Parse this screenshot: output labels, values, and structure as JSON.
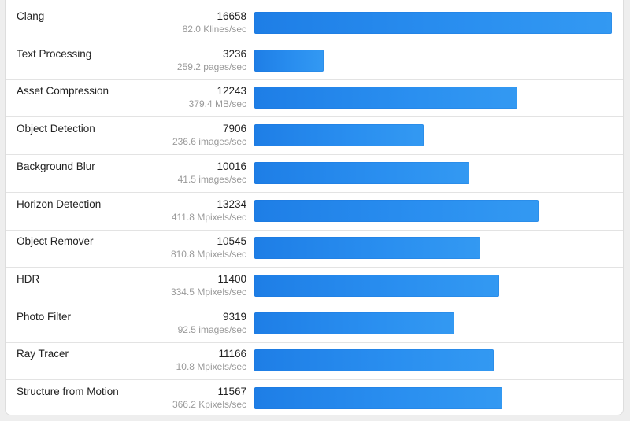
{
  "benchmarks": {
    "max_score": 16658,
    "bar_color": "#2188ec",
    "rows": [
      {
        "name": "Clang",
        "score": "16658",
        "score_value": 16658,
        "rate": "82.0 Klines/sec"
      },
      {
        "name": "Text Processing",
        "score": "3236",
        "score_value": 3236,
        "rate": "259.2 pages/sec"
      },
      {
        "name": "Asset Compression",
        "score": "12243",
        "score_value": 12243,
        "rate": "379.4 MB/sec"
      },
      {
        "name": "Object Detection",
        "score": "7906",
        "score_value": 7906,
        "rate": "236.6 images/sec"
      },
      {
        "name": "Background Blur",
        "score": "10016",
        "score_value": 10016,
        "rate": "41.5 images/sec"
      },
      {
        "name": "Horizon Detection",
        "score": "13234",
        "score_value": 13234,
        "rate": "411.8 Mpixels/sec"
      },
      {
        "name": "Object Remover",
        "score": "10545",
        "score_value": 10545,
        "rate": "810.8 Mpixels/sec"
      },
      {
        "name": "HDR",
        "score": "11400",
        "score_value": 11400,
        "rate": "334.5 Mpixels/sec"
      },
      {
        "name": "Photo Filter",
        "score": "9319",
        "score_value": 9319,
        "rate": "92.5 images/sec"
      },
      {
        "name": "Ray Tracer",
        "score": "11166",
        "score_value": 11166,
        "rate": "10.8 Mpixels/sec"
      },
      {
        "name": "Structure from Motion",
        "score": "11567",
        "score_value": 11567,
        "rate": "366.2 Kpixels/sec"
      }
    ]
  }
}
